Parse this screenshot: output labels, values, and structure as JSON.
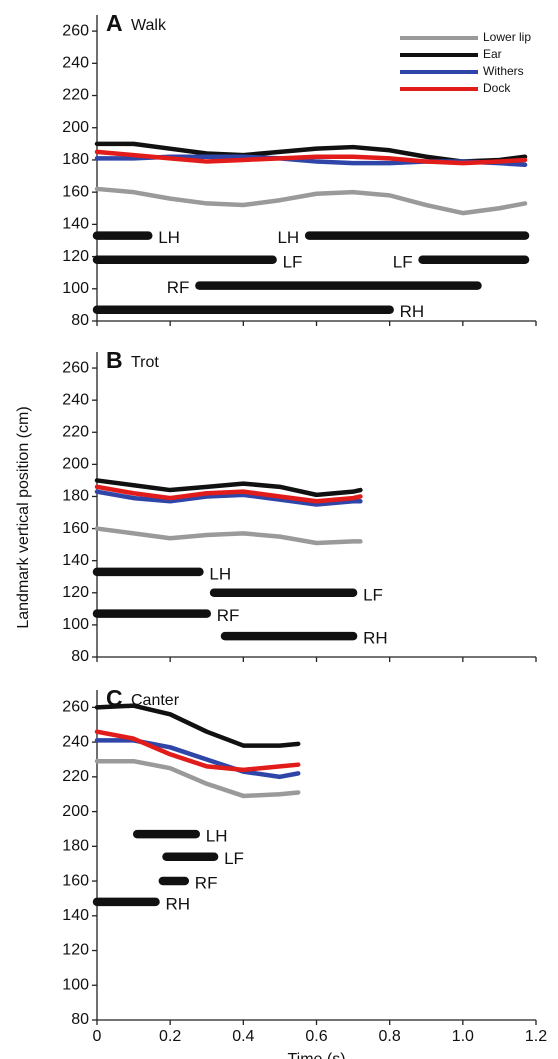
{
  "chart_data": [
    {
      "type": "line",
      "letter": "A",
      "title": "Walk",
      "x": [
        0,
        0.1,
        0.2,
        0.3,
        0.4,
        0.5,
        0.6,
        0.7,
        0.8,
        0.9,
        1.0,
        1.1,
        1.17
      ],
      "series": [
        {
          "name": "Lower lip",
          "color": "#9a9a9a",
          "values": [
            162,
            160,
            156,
            153,
            152,
            155,
            159,
            160,
            158,
            152,
            147,
            150,
            153
          ]
        },
        {
          "name": "Ear",
          "color": "#111111",
          "values": [
            190,
            190,
            187,
            184,
            183,
            185,
            187,
            188,
            186,
            182,
            179,
            180,
            182
          ]
        },
        {
          "name": "Withers",
          "color": "#2f46a8",
          "values": [
            181,
            181,
            182,
            182,
            182,
            181,
            179,
            178,
            178,
            179,
            179,
            178,
            177
          ]
        },
        {
          "name": "Dock",
          "color": "#e21b1b",
          "values": [
            185,
            183,
            181,
            179,
            180,
            181,
            182,
            182,
            181,
            179,
            178,
            179,
            180
          ]
        }
      ],
      "stance": [
        {
          "label": "LH",
          "start": 0,
          "end": 0.14,
          "y": 133
        },
        {
          "label": "LH",
          "start": 0.58,
          "end": 1.17,
          "y": 133
        },
        {
          "label": "LF",
          "start": 0,
          "end": 0.48,
          "y": 118
        },
        {
          "label": "LF",
          "start": 0.89,
          "end": 1.17,
          "y": 118
        },
        {
          "label": "RF",
          "start": 0.28,
          "end": 1.04,
          "y": 102
        },
        {
          "label": "RH",
          "start": 0,
          "end": 0.8,
          "y": 87
        }
      ],
      "xlim": [
        0,
        1.2
      ],
      "xticks": [
        0,
        0.2,
        0.4,
        0.6,
        0.8,
        1,
        1.2
      ],
      "ylim": [
        80,
        270
      ],
      "yticks": [
        80,
        100,
        120,
        140,
        160,
        180,
        200,
        220,
        240,
        260
      ],
      "legend": "top-right"
    },
    {
      "type": "line",
      "letter": "B",
      "title": "Trot",
      "ylabel": "Landmark vertical position (cm)",
      "x": [
        0,
        0.1,
        0.2,
        0.3,
        0.4,
        0.5,
        0.6,
        0.7,
        0.72
      ],
      "series": [
        {
          "color": "#9a9a9a",
          "values": [
            160,
            157,
            154,
            156,
            157,
            155,
            151,
            152,
            152
          ]
        },
        {
          "color": "#111111",
          "values": [
            190,
            187,
            184,
            186,
            188,
            186,
            181,
            183,
            184
          ]
        },
        {
          "color": "#2f46a8",
          "values": [
            183,
            179,
            177,
            180,
            181,
            178,
            175,
            177,
            177
          ]
        },
        {
          "color": "#e21b1b",
          "values": [
            186,
            182,
            179,
            182,
            183,
            180,
            177,
            179,
            180
          ]
        }
      ],
      "stance": [
        {
          "label": "LH",
          "start": 0,
          "end": 0.28,
          "y": 133
        },
        {
          "label": "LF",
          "start": 0.32,
          "end": 0.7,
          "y": 120
        },
        {
          "label": "RF",
          "start": 0,
          "end": 0.3,
          "y": 107
        },
        {
          "label": "RH",
          "start": 0.35,
          "end": 0.7,
          "y": 93
        }
      ],
      "xlim": [
        0,
        1.2
      ],
      "xticks": [
        0,
        0.2,
        0.4,
        0.6,
        0.8,
        1,
        1.2
      ],
      "ylim": [
        80,
        270
      ],
      "yticks": [
        80,
        100,
        120,
        140,
        160,
        180,
        200,
        220,
        240,
        260
      ]
    },
    {
      "type": "line",
      "letter": "C",
      "title": "Canter",
      "xlabel": "Time (s)",
      "x": [
        0,
        0.1,
        0.2,
        0.3,
        0.4,
        0.5,
        0.55
      ],
      "series": [
        {
          "color": "#9a9a9a",
          "values": [
            229,
            229,
            225,
            216,
            209,
            210,
            211
          ]
        },
        {
          "color": "#111111",
          "values": [
            260,
            261,
            256,
            246,
            238,
            238,
            239
          ]
        },
        {
          "color": "#2f46a8",
          "values": [
            241,
            241,
            237,
            230,
            223,
            220,
            222
          ]
        },
        {
          "color": "#e21b1b",
          "values": [
            246,
            242,
            233,
            226,
            224,
            226,
            227
          ]
        }
      ],
      "stance": [
        {
          "label": "LH",
          "start": 0.11,
          "end": 0.27,
          "y": 187
        },
        {
          "label": "LF",
          "start": 0.19,
          "end": 0.32,
          "y": 174
        },
        {
          "label": "RF",
          "start": 0.18,
          "end": 0.24,
          "y": 160
        },
        {
          "label": "RH",
          "start": 0,
          "end": 0.16,
          "y": 148
        }
      ],
      "xlim": [
        0,
        1.2
      ],
      "xticks": [
        0,
        0.2,
        0.4,
        0.6,
        0.8,
        {
          "value": 1,
          "label": "1.0"
        },
        1.2
      ],
      "ylim": [
        80,
        270
      ],
      "yticks": [
        80,
        100,
        120,
        140,
        160,
        180,
        200,
        220,
        240,
        260
      ]
    }
  ]
}
